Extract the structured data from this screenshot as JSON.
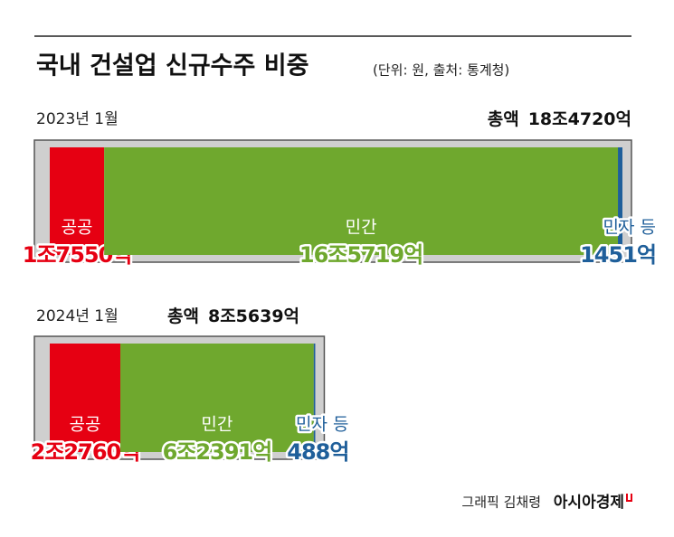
{
  "header": {
    "title": "국내 건설업 신규수주 비중",
    "subtitle": "(단위: 원, 출처: 통계청)"
  },
  "footer": {
    "credit": "그래픽 김채령",
    "brand": "아시아경제"
  },
  "chart_data": [
    {
      "type": "bar",
      "title": "2023년 1월",
      "total_label": "총액",
      "total": 184720,
      "total_value_label": "18조4720억",
      "series": [
        {
          "name": "공공",
          "color": "#e60012",
          "values": [
            17550
          ],
          "value_labels": [
            "1조7550억"
          ]
        },
        {
          "name": "민간",
          "color": "#6fa82e",
          "values": [
            165719
          ],
          "value_labels": [
            "16조5719억"
          ]
        },
        {
          "name": "민자 등",
          "color": "#1f5f9a",
          "values": [
            1451
          ],
          "value_labels": [
            "1451억"
          ]
        }
      ]
    },
    {
      "type": "bar",
      "title": "2024년 1월",
      "total_label": "총액",
      "total": 85639,
      "total_value_label": "8조5639억",
      "series": [
        {
          "name": "공공",
          "color": "#e60012",
          "values": [
            22760
          ],
          "value_labels": [
            "2조2760억"
          ]
        },
        {
          "name": "민간",
          "color": "#6fa82e",
          "values": [
            62391
          ],
          "value_labels": [
            "6조2391억"
          ]
        },
        {
          "name": "민자 등",
          "color": "#1f5f9a",
          "values": [
            488
          ],
          "value_labels": [
            "488억"
          ]
        }
      ]
    }
  ]
}
